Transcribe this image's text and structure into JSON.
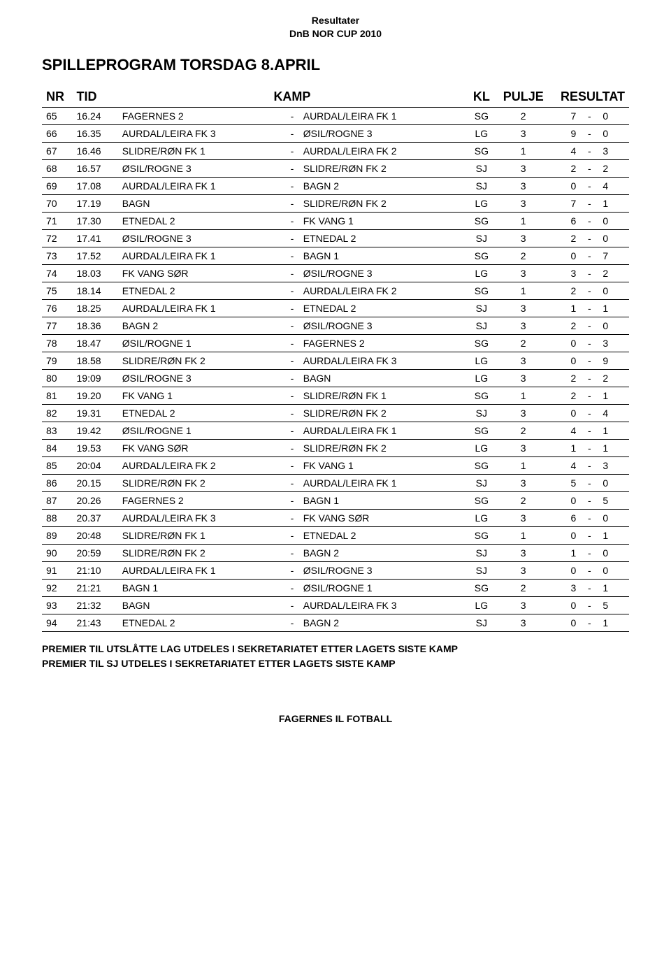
{
  "header": {
    "line1": "Resultater",
    "line2": "DnB NOR CUP 2010"
  },
  "title": "SPILLEPROGRAM TORSDAG 8.APRIL",
  "table": {
    "columns": {
      "nr": "NR",
      "tid": "TID",
      "kamp": "KAMP",
      "kl": "KL",
      "pulje": "PULJE",
      "resultat": "RESULTAT"
    },
    "rows": [
      {
        "nr": "65",
        "tid": "16.24",
        "t1": "FAGERNES 2",
        "t2": "AURDAL/LEIRA FK 1",
        "kl": "SG",
        "pulje": "2",
        "s1": "7",
        "s2": "0"
      },
      {
        "nr": "66",
        "tid": "16.35",
        "t1": "AURDAL/LEIRA FK 3",
        "t2": "ØSIL/ROGNE 3",
        "kl": "LG",
        "pulje": "3",
        "s1": "9",
        "s2": "0"
      },
      {
        "nr": "67",
        "tid": "16.46",
        "t1": "SLIDRE/RØN FK 1",
        "t2": "AURDAL/LEIRA FK 2",
        "kl": "SG",
        "pulje": "1",
        "s1": "4",
        "s2": "3"
      },
      {
        "nr": "68",
        "tid": "16.57",
        "t1": "ØSIL/ROGNE 3",
        "t2": "SLIDRE/RØN FK 2",
        "kl": "SJ",
        "pulje": "3",
        "s1": "2",
        "s2": "2"
      },
      {
        "nr": "69",
        "tid": "17.08",
        "t1": "AURDAL/LEIRA FK 1",
        "t2": "BAGN 2",
        "kl": "SJ",
        "pulje": "3",
        "s1": "0",
        "s2": "4"
      },
      {
        "nr": "70",
        "tid": "17.19",
        "t1": "BAGN",
        "t2": "SLIDRE/RØN FK 2",
        "kl": "LG",
        "pulje": "3",
        "s1": "7",
        "s2": "1"
      },
      {
        "nr": "71",
        "tid": "17.30",
        "t1": "ETNEDAL 2",
        "t2": "FK VANG  1",
        "kl": "SG",
        "pulje": "1",
        "s1": "6",
        "s2": "0"
      },
      {
        "nr": "72",
        "tid": "17.41",
        "t1": "ØSIL/ROGNE 3",
        "t2": "ETNEDAL 2",
        "kl": "SJ",
        "pulje": "3",
        "s1": "2",
        "s2": "0"
      },
      {
        "nr": "73",
        "tid": "17.52",
        "t1": "AURDAL/LEIRA FK 1",
        "t2": "BAGN 1",
        "kl": "SG",
        "pulje": "2",
        "s1": "0",
        "s2": "7"
      },
      {
        "nr": "74",
        "tid": "18.03",
        "t1": "FK VANG SØR",
        "t2": "ØSIL/ROGNE 3",
        "kl": "LG",
        "pulje": "3",
        "s1": "3",
        "s2": "2"
      },
      {
        "nr": "75",
        "tid": "18.14",
        "t1": "ETNEDAL 2",
        "t2": "AURDAL/LEIRA FK 2",
        "kl": "SG",
        "pulje": "1",
        "s1": "2",
        "s2": "0"
      },
      {
        "nr": "76",
        "tid": "18.25",
        "t1": "AURDAL/LEIRA FK 1",
        "t2": "ETNEDAL 2",
        "kl": "SJ",
        "pulje": "3",
        "s1": "1",
        "s2": "1"
      },
      {
        "nr": "77",
        "tid": "18.36",
        "t1": "BAGN 2",
        "t2": "ØSIL/ROGNE 3",
        "kl": "SJ",
        "pulje": "3",
        "s1": "2",
        "s2": "0"
      },
      {
        "nr": "78",
        "tid": "18.47",
        "t1": "ØSIL/ROGNE 1",
        "t2": "FAGERNES 2",
        "kl": "SG",
        "pulje": "2",
        "s1": "0",
        "s2": "3"
      },
      {
        "nr": "79",
        "tid": "18.58",
        "t1": "SLIDRE/RØN FK 2",
        "t2": "AURDAL/LEIRA FK 3",
        "kl": "LG",
        "pulje": "3",
        "s1": "0",
        "s2": "9"
      },
      {
        "nr": "80",
        "tid": "19:09",
        "t1": "ØSIL/ROGNE 3",
        "t2": "BAGN",
        "kl": "LG",
        "pulje": "3",
        "s1": "2",
        "s2": "2"
      },
      {
        "nr": "81",
        "tid": "19.20",
        "t1": "FK VANG  1",
        "t2": "SLIDRE/RØN FK 1",
        "kl": "SG",
        "pulje": "1",
        "s1": "2",
        "s2": "1"
      },
      {
        "nr": "82",
        "tid": "19.31",
        "t1": "ETNEDAL 2",
        "t2": "SLIDRE/RØN FK 2",
        "kl": "SJ",
        "pulje": "3",
        "s1": "0",
        "s2": "4"
      },
      {
        "nr": "83",
        "tid": "19.42",
        "t1": "ØSIL/ROGNE 1",
        "t2": "AURDAL/LEIRA FK 1",
        "kl": "SG",
        "pulje": "2",
        "s1": "4",
        "s2": "1"
      },
      {
        "nr": "84",
        "tid": "19.53",
        "t1": "FK VANG SØR",
        "t2": "SLIDRE/RØN FK 2",
        "kl": "LG",
        "pulje": "3",
        "s1": "1",
        "s2": "1"
      },
      {
        "nr": "85",
        "tid": "20:04",
        "t1": "AURDAL/LEIRA FK 2",
        "t2": "FK VANG  1",
        "kl": "SG",
        "pulje": "1",
        "s1": "4",
        "s2": "3"
      },
      {
        "nr": "86",
        "tid": "20.15",
        "t1": "SLIDRE/RØN FK 2",
        "t2": "AURDAL/LEIRA FK 1",
        "kl": "SJ",
        "pulje": "3",
        "s1": "5",
        "s2": "0"
      },
      {
        "nr": "87",
        "tid": "20.26",
        "t1": "FAGERNES 2",
        "t2": "BAGN 1",
        "kl": "SG",
        "pulje": "2",
        "s1": "0",
        "s2": "5"
      },
      {
        "nr": "88",
        "tid": "20.37",
        "t1": "AURDAL/LEIRA FK 3",
        "t2": "FK VANG SØR",
        "kl": "LG",
        "pulje": "3",
        "s1": "6",
        "s2": "0"
      },
      {
        "nr": "89",
        "tid": "20:48",
        "t1": "SLIDRE/RØN FK 1",
        "t2": "ETNEDAL 2",
        "kl": "SG",
        "pulje": "1",
        "s1": "0",
        "s2": "1"
      },
      {
        "nr": "90",
        "tid": "20:59",
        "t1": "SLIDRE/RØN FK 2",
        "t2": "BAGN 2",
        "kl": "SJ",
        "pulje": "3",
        "s1": "1",
        "s2": "0"
      },
      {
        "nr": "91",
        "tid": "21:10",
        "t1": "AURDAL/LEIRA FK 1",
        "t2": "ØSIL/ROGNE 3",
        "kl": "SJ",
        "pulje": "3",
        "s1": "0",
        "s2": "0"
      },
      {
        "nr": "92",
        "tid": "21:21",
        "t1": "BAGN 1",
        "t2": "ØSIL/ROGNE 1",
        "kl": "SG",
        "pulje": "2",
        "s1": "3",
        "s2": "1"
      },
      {
        "nr": "93",
        "tid": "21:32",
        "t1": "BAGN",
        "t2": "AURDAL/LEIRA FK 3",
        "kl": "LG",
        "pulje": "3",
        "s1": "0",
        "s2": "5"
      },
      {
        "nr": "94",
        "tid": "21:43",
        "t1": "ETNEDAL 2",
        "t2": "BAGN 2",
        "kl": "SJ",
        "pulje": "3",
        "s1": "0",
        "s2": "1"
      }
    ]
  },
  "notes": {
    "line1": "PREMIER TIL UTSLÅTTE LAG UTDELES I SEKRETARIATET ETTER LAGETS SISTE KAMP",
    "line2": "PREMIER TIL SJ UTDELES I SEKRETARIATET ETTER LAGETS SISTE KAMP"
  },
  "footer": "FAGERNES IL FOTBALL",
  "style": {
    "background_color": "#ffffff",
    "text_color": "#000000",
    "border_color": "#000000",
    "header_fontsize": 14,
    "title_fontsize": 22,
    "th_fontsize": 18,
    "td_fontsize": 14
  }
}
